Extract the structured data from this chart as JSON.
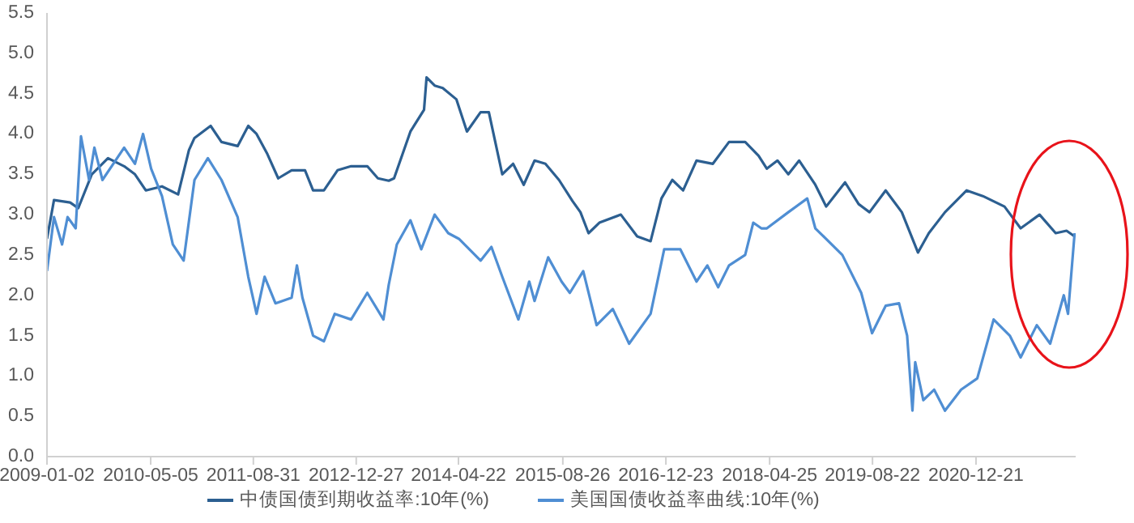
{
  "chart_data": {
    "type": "line",
    "xlim": [
      "2009-01-02",
      "2022-04-04"
    ],
    "xticks": [
      "2009-01-02",
      "2010-05-05",
      "2011-08-31",
      "2012-12-27",
      "2014-04-22",
      "2015-08-26",
      "2016-12-23",
      "2018-04-25",
      "2019-08-22",
      "2020-12-21"
    ],
    "ylim": [
      0,
      5.5
    ],
    "yticks": [
      {
        "value": 0,
        "label": "0.0"
      },
      0.5,
      {
        "value": 1,
        "label": "1.0"
      },
      1.5,
      {
        "value": 2,
        "label": "2.0"
      },
      2.5,
      {
        "value": 3,
        "label": "3.0"
      },
      3.5,
      {
        "value": 4,
        "label": "4.0"
      },
      4.5,
      {
        "value": 5,
        "label": "5.0"
      },
      5.5
    ],
    "grid": false,
    "legend": "bottom",
    "marker": "none",
    "line_style": "solid",
    "series": [
      {
        "name": "中债国债到期收益率:10年(%)",
        "color": "#2c5f91",
        "x": [
          "2009-01-02",
          "2009-02-04",
          "2009-04-21",
          "2009-05-29",
          "2009-08-01",
          "2009-10-16",
          "2009-12-31",
          "2010-02-20",
          "2010-04-12",
          "2010-06-27",
          "2010-09-11",
          "2010-11-01",
          "2010-11-27",
          "2011-02-11",
          "2011-04-03",
          "2011-06-18",
          "2011-08-07",
          "2011-09-15",
          "2011-11-05",
          "2011-12-26",
          "2012-02-27",
          "2012-04-30",
          "2012-06-07",
          "2012-07-28",
          "2012-09-30",
          "2012-12-03",
          "2013-02-17",
          "2013-04-08",
          "2013-05-29",
          "2013-06-23",
          "2013-09-08",
          "2013-11-11",
          "2013-11-23",
          "2013-12-31",
          "2014-02-07",
          "2014-04-12",
          "2014-06-01",
          "2014-08-04",
          "2014-09-12",
          "2014-11-14",
          "2015-01-04",
          "2015-02-23",
          "2015-04-15",
          "2015-06-05",
          "2015-08-08",
          "2015-10-10",
          "2015-11-17",
          "2015-12-25",
          "2016-02-14",
          "2016-05-25",
          "2016-08-10",
          "2016-10-12",
          "2016-12-02",
          "2017-01-22",
          "2017-03-14",
          "2017-05-16",
          "2017-08-01",
          "2017-10-16",
          "2017-12-31",
          "2018-03-04",
          "2018-04-12",
          "2018-06-01",
          "2018-07-22",
          "2018-09-11",
          "2018-11-26",
          "2019-01-16",
          "2019-04-15",
          "2019-06-18",
          "2019-08-08",
          "2019-10-23",
          "2020-01-07",
          "2020-03-23",
          "2020-05-13",
          "2020-07-28",
          "2020-11-07",
          "2021-01-22",
          "2021-05-04",
          "2021-07-19",
          "2021-10-16",
          "2021-12-31",
          "2022-02-20",
          "2022-03-30"
        ],
        "values": [
          2.7,
          3.18,
          3.15,
          3.08,
          3.5,
          3.7,
          3.6,
          3.5,
          3.3,
          3.35,
          3.25,
          3.8,
          3.95,
          4.1,
          3.9,
          3.85,
          4.1,
          4.0,
          3.75,
          3.45,
          3.55,
          3.55,
          3.3,
          3.3,
          3.55,
          3.6,
          3.6,
          3.45,
          3.42,
          3.45,
          4.03,
          4.3,
          4.7,
          4.6,
          4.57,
          4.43,
          4.03,
          4.27,
          4.27,
          3.5,
          3.63,
          3.37,
          3.67,
          3.63,
          3.43,
          3.17,
          3.03,
          2.77,
          2.9,
          3.0,
          2.73,
          2.67,
          3.2,
          3.43,
          3.3,
          3.67,
          3.63,
          3.9,
          3.9,
          3.73,
          3.57,
          3.67,
          3.5,
          3.67,
          3.37,
          3.1,
          3.4,
          3.13,
          3.03,
          3.3,
          3.03,
          2.53,
          2.77,
          3.03,
          3.3,
          3.23,
          3.1,
          2.83,
          3.0,
          2.77,
          2.8,
          2.73
        ]
      },
      {
        "name": "美国国债收益率曲线:10年(%)",
        "color": "#4f8ed3",
        "x": [
          "2009-01-02",
          "2009-02-04",
          "2009-03-14",
          "2009-04-09",
          "2009-05-17",
          "2009-06-11",
          "2009-07-19",
          "2009-08-13",
          "2009-09-20",
          "2009-11-10",
          "2009-12-31",
          "2010-02-20",
          "2010-03-30",
          "2010-05-07",
          "2010-06-27",
          "2010-08-17",
          "2010-10-07",
          "2010-11-27",
          "2011-01-29",
          "2011-04-03",
          "2011-06-18",
          "2011-08-07",
          "2011-09-15",
          "2011-10-23",
          "2011-12-13",
          "2012-02-27",
          "2012-03-23",
          "2012-04-18",
          "2012-06-07",
          "2012-07-28",
          "2012-09-17",
          "2012-12-03",
          "2013-02-17",
          "2013-05-04",
          "2013-05-29",
          "2013-07-06",
          "2013-09-08",
          "2013-10-29",
          "2013-12-31",
          "2014-03-05",
          "2014-04-24",
          "2014-08-04",
          "2014-09-24",
          "2014-11-14",
          "2015-01-29",
          "2015-03-21",
          "2015-04-15",
          "2015-06-18",
          "2015-08-20",
          "2015-09-28",
          "2015-11-30",
          "2016-02-01",
          "2016-04-17",
          "2016-07-03",
          "2016-10-12",
          "2016-12-15",
          "2017-03-01",
          "2017-05-16",
          "2017-07-06",
          "2017-08-26",
          "2017-10-16",
          "2017-12-31",
          "2018-02-07",
          "2018-03-17",
          "2018-04-12",
          "2018-07-22",
          "2018-10-19",
          "2018-11-26",
          "2019-04-02",
          "2019-06-30",
          "2019-08-20",
          "2019-10-23",
          "2019-12-25",
          "2020-02-01",
          "2020-02-26",
          "2020-03-10",
          "2020-04-17",
          "2020-06-07",
          "2020-07-28",
          "2020-10-12",
          "2020-12-27",
          "2021-03-14",
          "2021-05-29",
          "2021-07-19",
          "2021-10-03",
          "2021-12-05",
          "2022-02-07",
          "2022-02-27",
          "2022-03-30"
        ],
        "values": [
          2.3,
          2.97,
          2.63,
          2.97,
          2.83,
          3.97,
          3.43,
          3.83,
          3.43,
          3.63,
          3.83,
          3.63,
          4.0,
          3.57,
          3.23,
          2.63,
          2.43,
          3.43,
          3.7,
          3.43,
          2.97,
          2.23,
          1.77,
          2.23,
          1.9,
          1.97,
          2.37,
          1.97,
          1.5,
          1.43,
          1.77,
          1.7,
          2.03,
          1.7,
          2.13,
          2.63,
          2.93,
          2.57,
          3.0,
          2.77,
          2.7,
          2.43,
          2.6,
          2.23,
          1.7,
          2.17,
          1.93,
          2.47,
          2.17,
          2.03,
          2.3,
          1.63,
          1.83,
          1.4,
          1.77,
          2.57,
          2.57,
          2.17,
          2.37,
          2.1,
          2.37,
          2.5,
          2.9,
          2.83,
          2.83,
          3.03,
          3.2,
          2.83,
          2.5,
          2.03,
          1.53,
          1.87,
          1.9,
          1.5,
          0.57,
          1.17,
          0.7,
          0.83,
          0.57,
          0.83,
          0.97,
          1.7,
          1.5,
          1.23,
          1.63,
          1.4,
          2.0,
          1.77,
          2.77
        ]
      }
    ]
  }
}
